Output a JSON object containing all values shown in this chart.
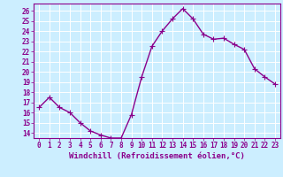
{
  "x": [
    0,
    1,
    2,
    3,
    4,
    5,
    6,
    7,
    8,
    9,
    10,
    11,
    12,
    13,
    14,
    15,
    16,
    17,
    18,
    19,
    20,
    21,
    22,
    23
  ],
  "y": [
    16.5,
    17.5,
    16.5,
    16.0,
    15.0,
    14.2,
    13.8,
    13.5,
    13.5,
    15.8,
    19.5,
    22.5,
    24.0,
    25.2,
    26.2,
    25.2,
    23.7,
    23.2,
    23.3,
    22.7,
    22.2,
    20.3,
    19.5,
    18.8
  ],
  "line_color": "#8B008B",
  "marker": "+",
  "marker_size": 4,
  "bg_color": "#cceeff",
  "grid_color": "#ffffff",
  "xlabel": "Windchill (Refroidissement éolien,°C)",
  "xlabel_color": "#8B008B",
  "ylim": [
    13.5,
    26.7
  ],
  "xlim": [
    -0.5,
    23.5
  ],
  "yticks": [
    14,
    15,
    16,
    17,
    18,
    19,
    20,
    21,
    22,
    23,
    24,
    25,
    26
  ],
  "xticks": [
    0,
    1,
    2,
    3,
    4,
    5,
    6,
    7,
    8,
    9,
    10,
    11,
    12,
    13,
    14,
    15,
    16,
    17,
    18,
    19,
    20,
    21,
    22,
    23
  ],
  "tick_fontsize": 5.5,
  "xlabel_fontsize": 6.5,
  "linewidth": 1.0,
  "spine_color": "#8B008B"
}
